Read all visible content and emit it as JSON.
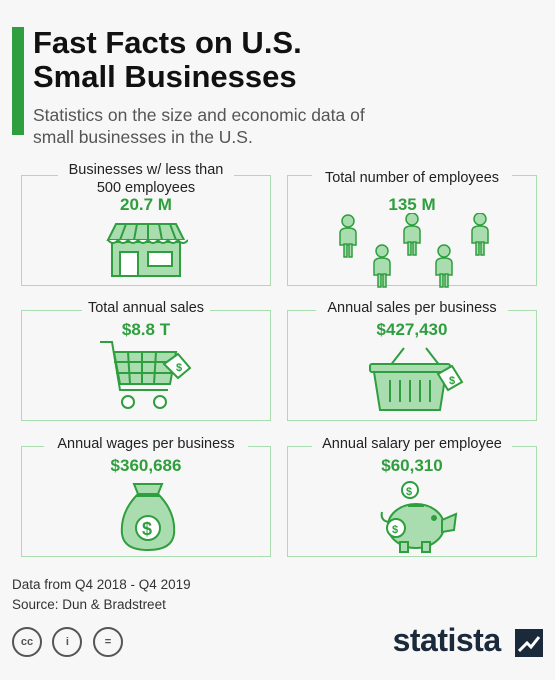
{
  "header": {
    "title_line1": "Fast Facts on U.S.",
    "title_line2": "Small Businesses",
    "subtitle_line1": "Statistics on the size and economic data of",
    "subtitle_line2": "small businesses in the U.S."
  },
  "cards": [
    {
      "label_line1": "Businesses w/ less than",
      "label_line2": "500 employees",
      "value": "20.7 M",
      "icon": "storefront-icon"
    },
    {
      "label_line1": "Total number of employees",
      "value": "135 M",
      "icon": "people-icon"
    },
    {
      "label_line1": "Total annual sales",
      "value": "$8.8 T",
      "icon": "shopping-cart-icon"
    },
    {
      "label_line1": "Annual sales per business",
      "value": "$427,430",
      "icon": "shopping-basket-icon"
    },
    {
      "label_line1": "Annual wages per business",
      "value": "$360,686",
      "icon": "money-bag-icon"
    },
    {
      "label_line1": "Annual salary per employee",
      "value": "$60,310",
      "icon": "piggy-bank-icon"
    }
  ],
  "footer": {
    "data_range": "Data from Q4 2018 - Q4 2019",
    "source": "Source: Dun & Bradstreet",
    "license_icons": [
      "cc-icon",
      "attribution-icon",
      "no-derivatives-icon"
    ],
    "brand": "statista"
  },
  "colors": {
    "accent": "#2e9e3e",
    "icon_fill": "#a9dcae",
    "icon_stroke": "#2e9e3e"
  }
}
